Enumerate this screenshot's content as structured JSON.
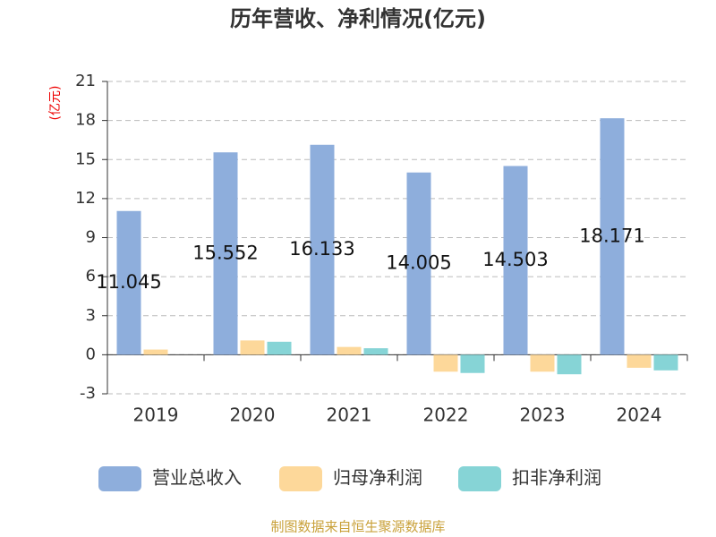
{
  "chart_data": {
    "type": "bar",
    "title": "历年营收、净利情况(亿元)",
    "y_label": "(亿元)",
    "categories": [
      "2019",
      "2020",
      "2021",
      "2022",
      "2023",
      "2024"
    ],
    "series": [
      {
        "name": "营业总收入",
        "color": "#8eaedc",
        "values": [
          11.045,
          15.552,
          16.133,
          14.005,
          14.503,
          18.171
        ],
        "show_labels": true
      },
      {
        "name": "归母净利润",
        "color": "#fdd89a",
        "values": [
          0.4,
          1.1,
          0.6,
          -1.3,
          -1.3,
          -1.0
        ]
      },
      {
        "name": "扣非净利润",
        "color": "#86d4d6",
        "values": [
          null,
          1.0,
          0.5,
          -1.4,
          -1.5,
          -1.2
        ]
      }
    ],
    "ylim": [
      -3,
      21
    ],
    "yticks": [
      -3,
      0,
      3,
      6,
      9,
      12,
      15,
      18,
      21
    ],
    "grid": true,
    "source": "制图数据来自恒生聚源数据库"
  }
}
